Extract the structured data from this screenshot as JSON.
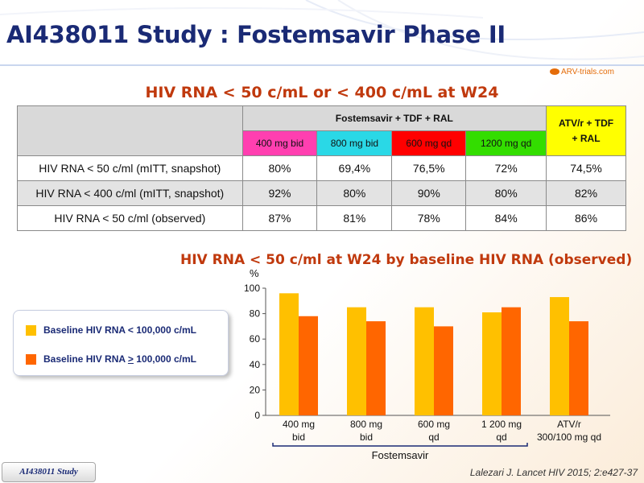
{
  "header": {
    "title": "AI438011 Study : Fostemsavir Phase II",
    "logo": "ARV-trials.com"
  },
  "table": {
    "heading": "HIV RNA < 50 c/mL or  < 400 c/mL at W24",
    "fostemsavir_header": "Fostemsavir + TDF + RAL",
    "comparator_header_line1": "ATV/r + TDF",
    "comparator_header_line2": "+ RAL",
    "dose_columns": [
      "400 mg bid",
      "800 mg bid",
      "600 mg qd",
      "1200 mg qd"
    ],
    "dose_colors": [
      "#ff3fb0",
      "#2ad8e6",
      "#ff0000",
      "#33dd00"
    ],
    "rows": [
      {
        "label": "HIV RNA < 50 c/ml (mITT, snapshot)",
        "values": [
          "80%",
          "69,4%",
          "76,5%",
          "72%",
          "74,5%"
        ]
      },
      {
        "label": "HIV RNA < 400 c/ml (mITT, snapshot)",
        "values": [
          "92%",
          "80%",
          "90%",
          "80%",
          "82%"
        ]
      },
      {
        "label": "HIV RNA < 50 c/ml (observed)",
        "values": [
          "87%",
          "81%",
          "78%",
          "84%",
          "86%"
        ]
      }
    ]
  },
  "legend": {
    "item1_label": "Baseline HIV RNA < 100,000 c/mL",
    "item2_prefix": "Baseline HIV RNA ",
    "item2_symbol": ">",
    "item2_suffix": " 100,000 c/mL",
    "item1_color": "#ffc000",
    "item2_color": "#ff6600"
  },
  "chart_data": {
    "type": "bar",
    "title": "HIV RNA < 50 c/ml at W24 by baseline HIV RNA (observed)",
    "ylabel": "%",
    "ylim": [
      0,
      100
    ],
    "yticks": [
      0,
      20,
      40,
      60,
      80,
      100
    ],
    "categories": [
      [
        "400 mg",
        "bid"
      ],
      [
        "800 mg",
        "bid"
      ],
      [
        "600 mg",
        "qd"
      ],
      [
        "1 200 mg",
        "qd"
      ],
      [
        "ATV/r",
        "300/100 mg qd"
      ]
    ],
    "group_label": "Fostemsavir",
    "series": [
      {
        "color": "#ffc000",
        "values": [
          96,
          85,
          85,
          81,
          93
        ]
      },
      {
        "color": "#ff6600",
        "values": [
          78,
          74,
          70,
          85,
          74
        ]
      }
    ]
  },
  "footer": {
    "study": "AI438011 Study",
    "citation": "Lalezari J. Lancet HIV 2015; 2:e427-37"
  }
}
